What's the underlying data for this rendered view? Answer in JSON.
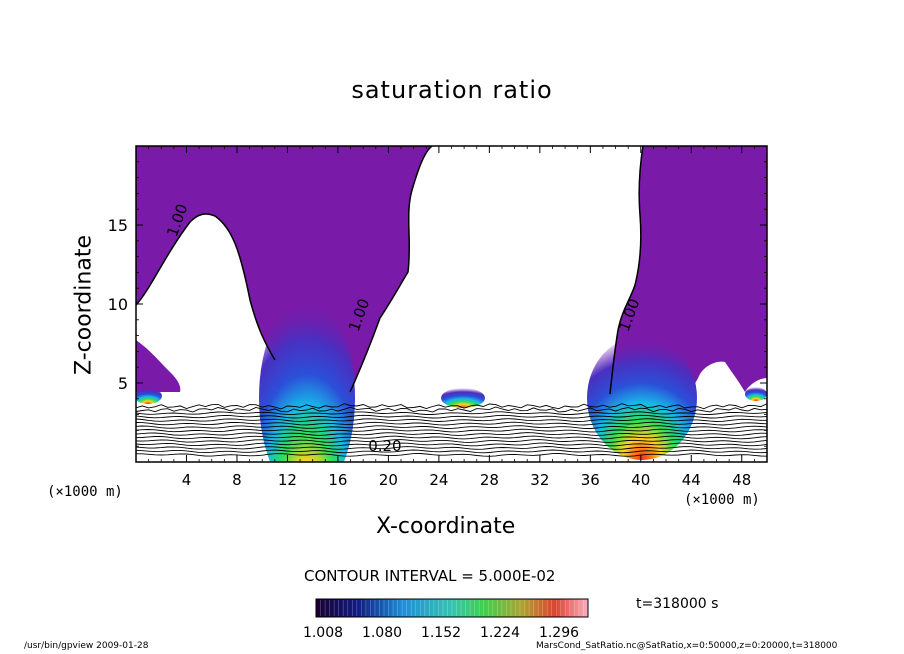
{
  "chart_data": {
    "type": "heatmap",
    "title": "saturation ratio",
    "xlabel": "X-coordinate",
    "ylabel": "Z-coordinate",
    "x_unit_label": "(×1000 m)",
    "xlim": [
      0,
      50
    ],
    "ylim": [
      0,
      20
    ],
    "x_ticks": [
      4,
      8,
      12,
      16,
      20,
      24,
      28,
      32,
      36,
      40,
      44,
      48
    ],
    "y_ticks": [
      5,
      10,
      15
    ],
    "contour_labels": [
      {
        "text": "1.00",
        "x": 3.2,
        "z": 14.2
      },
      {
        "text": "1.00",
        "x": 17.6,
        "z": 8.2
      },
      {
        "text": "1.00",
        "x": 39.0,
        "z": 8.2
      },
      {
        "text": "0.20",
        "x": 18.4,
        "z": 0.7
      }
    ],
    "contour_interval_text": "CONTOUR INTERVAL = 5.000E-02",
    "colorbar": {
      "tick_labels": [
        "1.008",
        "1.080",
        "1.152",
        "1.224",
        "1.296"
      ],
      "min": 1.008,
      "max": 1.296
    },
    "time_label": "t=318000 s",
    "colors": {
      "saturated": "#7a1aa8",
      "frame": "#000000"
    }
  },
  "footer": {
    "left": "/usr/bin/gpview   2009-01-28",
    "right": "MarsCond_SatRatio.nc@SatRatio,x=0:50000,z=0:20000,t=318000"
  }
}
